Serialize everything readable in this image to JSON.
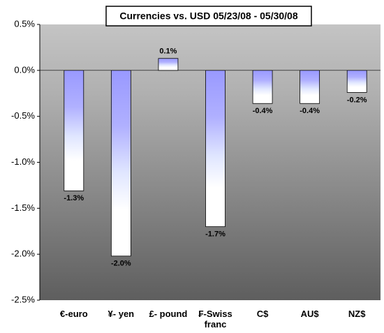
{
  "chart_data": {
    "type": "bar",
    "title": "Currencies vs. USD 05/23/08 - 05/30/08",
    "categories": [
      "€-euro",
      "¥- yen",
      "£- pound",
      "₣-Swiss franc",
      "C$",
      "AU$",
      "NZ$"
    ],
    "values": [
      -1.31,
      -2.02,
      0.13,
      -1.7,
      -0.36,
      -0.36,
      -0.24
    ],
    "value_labels": [
      "-1.3%",
      "-2.0%",
      "0.1%",
      "-1.7%",
      "-0.4%",
      "-0.4%",
      "-0.2%"
    ],
    "ylim": [
      -2.5,
      0.5
    ],
    "yticks": [
      {
        "value": -2.5,
        "label": "-2.5%"
      },
      {
        "value": -2.0,
        "label": "-2.0%"
      },
      {
        "value": -1.5,
        "label": "-1.5%"
      },
      {
        "value": -1.0,
        "label": "-1.0%"
      },
      {
        "value": -0.5,
        "label": "-0.5%"
      },
      {
        "value": 0,
        "label": "0.0%"
      },
      {
        "value": 0.5,
        "label": "0.5%"
      }
    ]
  }
}
